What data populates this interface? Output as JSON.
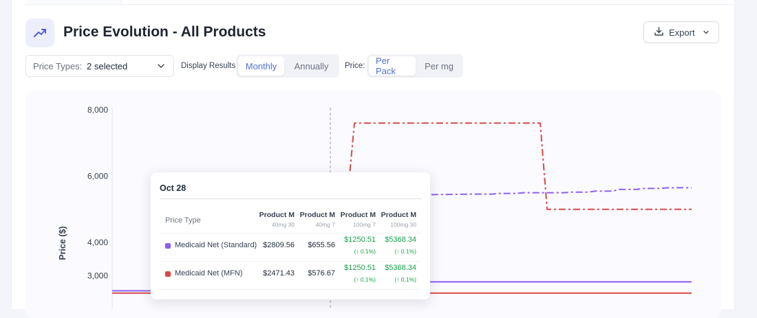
{
  "header": {
    "title": "Price Evolution - All Products",
    "export_label": "Export"
  },
  "controls": {
    "price_types_label": "Price Types:",
    "price_types_value": "2 selected",
    "display_results_label": "Display Results:",
    "display_options": [
      "Monthly",
      "Annually"
    ],
    "display_selected": "Monthly",
    "price_label": "Price:",
    "price_options": [
      "Per Pack",
      "Per mg"
    ],
    "price_selected": "Per Pack"
  },
  "colors": {
    "accent": "#4f6fd1",
    "purple": "#8b5cf6",
    "red": "#d94848",
    "green": "#16a34a"
  },
  "chart_data": {
    "type": "line",
    "ylabel": "Price ($)",
    "xlabel": "",
    "ylim": [
      3000,
      8000
    ],
    "yticks": [
      8000,
      6000,
      4000,
      3000
    ],
    "ytick_labels": [
      "8,000",
      "6,000",
      "4,000",
      "3,000"
    ],
    "x": [
      0,
      1,
      2,
      3,
      4,
      5,
      6,
      7,
      8,
      9,
      10,
      11,
      12,
      13,
      14,
      15,
      16,
      17,
      18,
      19,
      20,
      21,
      22,
      23,
      24
    ],
    "highlight_index": 9,
    "series": [
      {
        "name": "Medicaid Net (Standard)",
        "group": "purple",
        "style": "solid",
        "show_from": 0,
        "values": [
          2540,
          2540,
          2540,
          2540,
          2540,
          2540,
          2540,
          2540,
          2540,
          2809.56,
          2809.56,
          2809.56,
          2809.56,
          2809.56,
          2809.56,
          2809.56,
          2809.56,
          2809.56,
          2809.56,
          2809.56,
          2809.56,
          2809.56,
          2809.56,
          2809.56,
          2809.56
        ]
      },
      {
        "name": "Medicaid Net (MFN)",
        "group": "red",
        "style": "solid",
        "show_from": 0,
        "values": [
          2471.43,
          2471.43,
          2471.43,
          2471.43,
          2471.43,
          2471.43,
          2471.43,
          2471.43,
          2471.43,
          2471.43,
          2471.43,
          2471.43,
          2471.43,
          2471.43,
          2471.43,
          2471.43,
          2471.43,
          2471.43,
          2471.43,
          2471.43,
          2471.43,
          2471.43,
          2471.43,
          2471.43,
          2471.43
        ]
      },
      {
        "name": "Medicaid Net (Standard)",
        "group": "purple",
        "style": "dashdot",
        "show_from": 9,
        "values": [
          null,
          null,
          null,
          null,
          null,
          null,
          null,
          null,
          null,
          5368.34,
          5368.34,
          5400,
          5420,
          5440,
          5450,
          5460,
          5480,
          5500,
          5500,
          5520,
          5550,
          5600,
          5630,
          5650,
          5650
        ]
      },
      {
        "name": "Medicaid Net (MFN)",
        "group": "red",
        "style": "dashdot",
        "show_from": 9,
        "values": [
          null,
          null,
          null,
          null,
          null,
          null,
          null,
          null,
          null,
          5368.34,
          7600,
          7600,
          7600,
          7600,
          7600,
          7600,
          7600,
          7600,
          5000,
          5000,
          5000,
          5000,
          5000,
          5000,
          5000
        ]
      }
    ]
  },
  "tooltip": {
    "date": "Oct 28",
    "price_type_header": "Price Type",
    "columns": [
      {
        "name": "Product M",
        "sub": "40mg 30"
      },
      {
        "name": "Product M",
        "sub": "40mg 7"
      },
      {
        "name": "Product M",
        "sub": "100mg 7"
      },
      {
        "name": "Product M",
        "sub": "100mg 30"
      }
    ],
    "rows": [
      {
        "name": "Medicaid Net (Standard)",
        "color": "#8b5cf6",
        "cells": [
          {
            "value": "$2809.56",
            "change": ""
          },
          {
            "value": "$655.56",
            "change": ""
          },
          {
            "value": "$1250.51",
            "change": "(↑ 0.1%)"
          },
          {
            "value": "$5368.34",
            "change": "(↑ 0.1%)"
          }
        ]
      },
      {
        "name": "Medicaid Net (MFN)",
        "color": "#d94848",
        "cells": [
          {
            "value": "$2471.43",
            "change": ""
          },
          {
            "value": "$576.67",
            "change": ""
          },
          {
            "value": "$1250.51",
            "change": "(↑ 0.1%)"
          },
          {
            "value": "$5368.34",
            "change": "(↑ 0.1%)"
          }
        ]
      }
    ]
  }
}
